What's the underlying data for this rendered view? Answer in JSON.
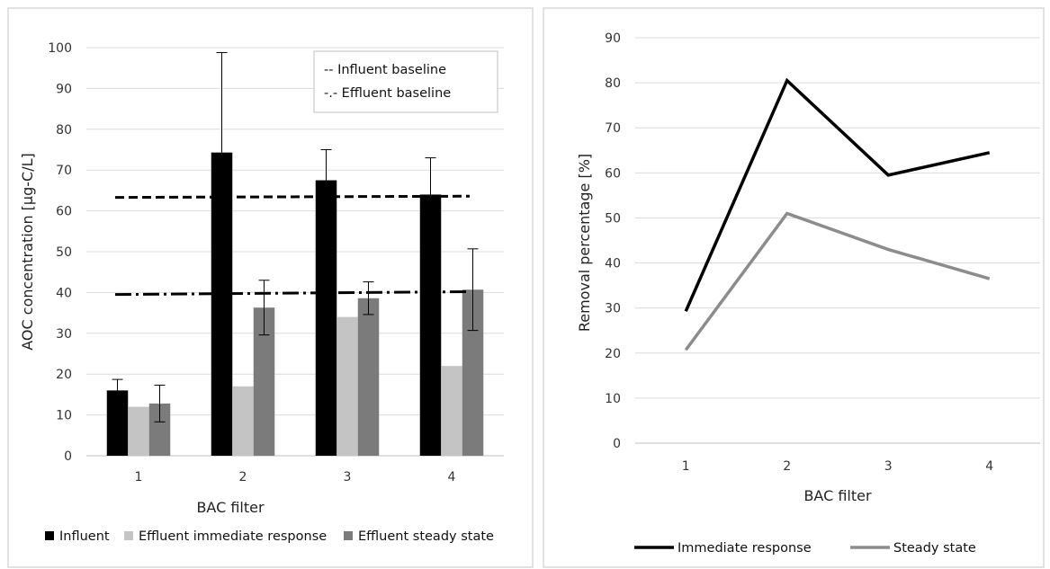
{
  "chart_data": [
    {
      "type": "bar",
      "title": "",
      "xlabel": "BAC filter",
      "ylabel": "AOC concentration [µg-C/L]",
      "ylim": [
        0,
        100
      ],
      "yticks": [
        0,
        10,
        20,
        30,
        40,
        50,
        60,
        70,
        80,
        90,
        100
      ],
      "categories": [
        "1",
        "2",
        "3",
        "4"
      ],
      "series": [
        {
          "name": "Influent",
          "color": "#000000",
          "values": [
            16,
            74.3,
            67.5,
            64
          ],
          "error": [
            2.7,
            24.5,
            7.5,
            9
          ]
        },
        {
          "name": "Effluent immediate response",
          "color": "#c4c4c4",
          "values": [
            12,
            17,
            34,
            22
          ],
          "error": null
        },
        {
          "name": "Effluent steady state",
          "color": "#7b7b7b",
          "values": [
            12.8,
            36.3,
            38.6,
            40.7
          ],
          "error": [
            4.5,
            6.7,
            4,
            10
          ]
        }
      ],
      "reference_lines": [
        {
          "name": "Influent baseline",
          "legend_label": "-- Influent baseline",
          "style": "dashed",
          "y_start": 63.3,
          "y_end": 63.6
        },
        {
          "name": "Effluent baseline",
          "legend_label": "-.- Effluent baseline",
          "style": "dash-dot",
          "y_start": 39.5,
          "y_end": 40.2
        }
      ],
      "grid": true,
      "legend_position": "bottom",
      "ref_legend_position": "top-right"
    },
    {
      "type": "line",
      "title": "",
      "xlabel": "BAC filter",
      "ylabel": "Removal percentage [%]",
      "ylim": [
        0,
        90
      ],
      "yticks": [
        0,
        10,
        20,
        30,
        40,
        50,
        60,
        70,
        80,
        90
      ],
      "categories": [
        "1",
        "2",
        "3",
        "4"
      ],
      "series": [
        {
          "name": "Immediate response",
          "color": "#000000",
          "values": [
            29.3,
            80.5,
            59.5,
            64.5
          ]
        },
        {
          "name": "Steady state",
          "color": "#8c8c8c",
          "values": [
            20.7,
            51,
            43,
            36.5
          ]
        }
      ],
      "grid": true,
      "legend_position": "bottom"
    }
  ]
}
